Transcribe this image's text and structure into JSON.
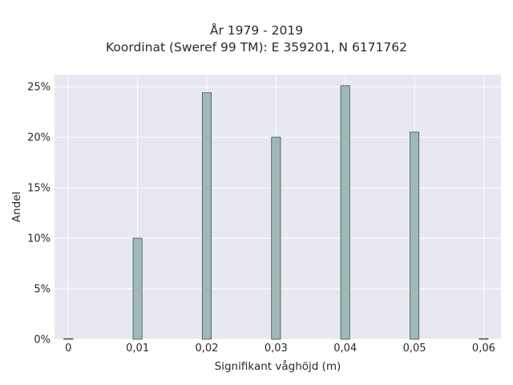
{
  "chart_data": {
    "type": "bar",
    "title_lines": [
      "År 1979 - 2019",
      "Koordinat (Sweref 99 TM): E 359201, N 6171762"
    ],
    "xlabel": "Signifikant våghöjd (m)",
    "ylabel": "Andel",
    "x_ticks": [
      "0",
      "0,01",
      "0,02",
      "0,03",
      "0,04",
      "0,05",
      "0,06"
    ],
    "y_ticks": [
      "0%",
      "5%",
      "10%",
      "15%",
      "20%",
      "25%"
    ],
    "xlim": [
      -0.002,
      0.0625
    ],
    "ylim": [
      0,
      26.2
    ],
    "x": [
      0,
      0.01,
      0.02,
      0.03,
      0.04,
      0.05,
      0.06
    ],
    "values": [
      0.0,
      10.0,
      24.4,
      20.0,
      25.1,
      20.5,
      0.0
    ],
    "bar_width": 0.0013,
    "grid": true,
    "colors": {
      "plot_bg": "#e8e8f0",
      "grid": "#ffffff",
      "bar_fill": "#9fb9b7",
      "bar_stroke": "#3f5452"
    }
  }
}
